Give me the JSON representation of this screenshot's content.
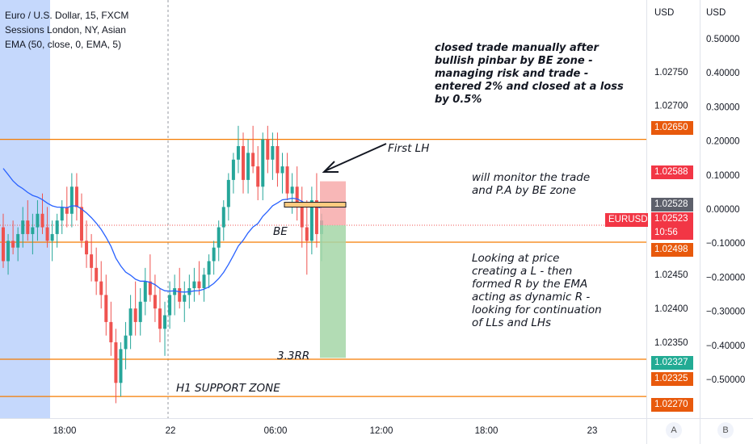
{
  "legend": {
    "line1": "Euro / U.S. Dollar, 15, FXCM",
    "line2": "Sessions London, NY, Asian",
    "line3": "EMA (50, close, 0, EMA, 5)"
  },
  "annotations": {
    "closed_note": [
      "closed trade manually after",
      "bullish pinbar by BE zone -",
      "managing risk and trade -",
      "entered 2% and closed at a loss",
      "by 0.5%"
    ],
    "monitor_note": [
      "will monitor the trade",
      "and P.A by BE zone"
    ],
    "price_note": [
      "Looking at price",
      "creating a L - then",
      "formed R by the EMA",
      "acting as dynamic R -",
      "looking for continuation",
      "of LLs and LHs"
    ],
    "first_lh": "First LH",
    "be": "BE",
    "rr": "3.3RR",
    "support": "H1 SUPPORT ZONE"
  },
  "axis": {
    "price_currency": "USD",
    "pct_currency": "USD",
    "price_ticks": [
      "1.02750",
      "1.02700",
      "1.02600",
      "1.02450",
      "1.02400",
      "1.02350"
    ],
    "pct_ticks": [
      "0.50000",
      "0.40000",
      "0.30000",
      "0.20000",
      "0.10000",
      "0.00000",
      "−0.10000",
      "−0.20000",
      "−0.30000",
      "−0.40000",
      "−0.50000"
    ],
    "time_ticks": [
      "18:00",
      "22",
      "06:00",
      "12:00",
      "18:00",
      "23"
    ],
    "btn_a": "A",
    "btn_b": "B"
  },
  "price_tags": {
    "t102650": "1.02650",
    "t102588": "1.02588",
    "t102528": "1.02528",
    "symbol": "EURUSD",
    "t102523": "1.02523",
    "countdown": "10:56",
    "t102498": "1.02498",
    "t102327": "1.02327",
    "t102325": "1.02325",
    "t102270": "1.02270"
  },
  "colors": {
    "up": "#26a69a",
    "down": "#ef5350",
    "ema": "#2962ff",
    "level_line": "#f57c00",
    "session_shade": "#bbd1fb",
    "tag_orange": "#e8590c",
    "tag_red": "#f23645",
    "tag_green": "#22ab94",
    "tag_dark": "#5d606b",
    "stop_zone": "#f6a5a5",
    "target_zone": "#a5d6a7"
  },
  "chart_data": {
    "type": "candlestick",
    "symbol": "Euro / U.S. Dollar",
    "timeframe": "15",
    "ylim": [
      1.0224,
      1.0278
    ],
    "horizontal_levels": [
      1.0265,
      1.02498,
      1.02325,
      1.0227
    ],
    "ema_period": 50,
    "candles": [
      [
        1.0252,
        1.0254,
        1.0246,
        1.0247
      ],
      [
        1.0247,
        1.0251,
        1.0245,
        1.025
      ],
      [
        1.025,
        1.0253,
        1.0248,
        1.0249
      ],
      [
        1.0249,
        1.0252,
        1.0247,
        1.0251
      ],
      [
        1.0251,
        1.0255,
        1.0249,
        1.0253
      ],
      [
        1.0253,
        1.0256,
        1.025,
        1.0251
      ],
      [
        1.0251,
        1.0254,
        1.0248,
        1.0252
      ],
      [
        1.0252,
        1.0256,
        1.025,
        1.0254
      ],
      [
        1.0254,
        1.0257,
        1.0251,
        1.0252
      ],
      [
        1.0252,
        1.0255,
        1.0249,
        1.025
      ],
      [
        1.025,
        1.0253,
        1.0247,
        1.0251
      ],
      [
        1.0251,
        1.0254,
        1.0249,
        1.0253
      ],
      [
        1.0253,
        1.0256,
        1.0251,
        1.0255
      ],
      [
        1.0255,
        1.0258,
        1.0252,
        1.0254
      ],
      [
        1.0254,
        1.026,
        1.0252,
        1.0258
      ],
      [
        1.0258,
        1.026,
        1.0253,
        1.0255
      ],
      [
        1.0255,
        1.0257,
        1.0249,
        1.025
      ],
      [
        1.025,
        1.0253,
        1.0246,
        1.0248
      ],
      [
        1.0248,
        1.0251,
        1.0244,
        1.0246
      ],
      [
        1.0246,
        1.0249,
        1.0242,
        1.0244
      ],
      [
        1.0244,
        1.0247,
        1.024,
        1.0242
      ],
      [
        1.0242,
        1.0245,
        1.0236,
        1.0238
      ],
      [
        1.0238,
        1.0241,
        1.0233,
        1.0235
      ],
      [
        1.0235,
        1.0237,
        1.0226,
        1.0229
      ],
      [
        1.0229,
        1.0235,
        1.0227,
        1.0234
      ],
      [
        1.0234,
        1.0238,
        1.0231,
        1.0236
      ],
      [
        1.0236,
        1.0242,
        1.0234,
        1.024
      ],
      [
        1.024,
        1.0244,
        1.0236,
        1.0238
      ],
      [
        1.0238,
        1.0243,
        1.0236,
        1.0241
      ],
      [
        1.0241,
        1.0246,
        1.0239,
        1.0244
      ],
      [
        1.0244,
        1.0248,
        1.0241,
        1.0242
      ],
      [
        1.0242,
        1.0245,
        1.0238,
        1.024
      ],
      [
        1.024,
        1.0243,
        1.0235,
        1.0237
      ],
      [
        1.0237,
        1.0241,
        1.0233,
        1.0239
      ],
      [
        1.0239,
        1.0244,
        1.0237,
        1.0242
      ],
      [
        1.0242,
        1.0245,
        1.0239,
        1.0243
      ],
      [
        1.0243,
        1.0246,
        1.024,
        1.0241
      ],
      [
        1.0241,
        1.0244,
        1.0238,
        1.0242
      ],
      [
        1.0242,
        1.0245,
        1.024,
        1.0243
      ],
      [
        1.0243,
        1.0246,
        1.0241,
        1.0244
      ],
      [
        1.0244,
        1.0247,
        1.0242,
        1.0243
      ],
      [
        1.0243,
        1.0246,
        1.0241,
        1.0245
      ],
      [
        1.0245,
        1.0248,
        1.0243,
        1.0247
      ],
      [
        1.0247,
        1.025,
        1.0245,
        1.0249
      ],
      [
        1.0249,
        1.0253,
        1.0247,
        1.0252
      ],
      [
        1.0252,
        1.0256,
        1.025,
        1.0255
      ],
      [
        1.0255,
        1.026,
        1.0253,
        1.0259
      ],
      [
        1.0259,
        1.0263,
        1.0257,
        1.0262
      ],
      [
        1.0262,
        1.0267,
        1.026,
        1.0264
      ],
      [
        1.0264,
        1.0266,
        1.0257,
        1.0259
      ],
      [
        1.0259,
        1.0265,
        1.0257,
        1.0263
      ],
      [
        1.0263,
        1.0267,
        1.026,
        1.0261
      ],
      [
        1.0261,
        1.0264,
        1.0256,
        1.0258
      ],
      [
        1.0258,
        1.0266,
        1.0256,
        1.0265
      ],
      [
        1.0265,
        1.0267,
        1.026,
        1.0262
      ],
      [
        1.0262,
        1.0266,
        1.0259,
        1.0264
      ],
      [
        1.0264,
        1.0266,
        1.0258,
        1.026
      ],
      [
        1.026,
        1.0263,
        1.0257,
        1.0261
      ],
      [
        1.0261,
        1.0263,
        1.0256,
        1.0257
      ],
      [
        1.0257,
        1.026,
        1.0254,
        1.0258
      ],
      [
        1.0258,
        1.0261,
        1.0253,
        1.0255
      ],
      [
        1.0255,
        1.0258,
        1.0249,
        1.0252
      ],
      [
        1.0252,
        1.0256,
        1.0245,
        1.025
      ],
      [
        1.025,
        1.0258,
        1.0248,
        1.0256
      ],
      [
        1.0256,
        1.026,
        1.0249,
        1.0251
      ],
      [
        1.0251,
        1.0254,
        1.0247,
        1.0253
      ]
    ]
  }
}
